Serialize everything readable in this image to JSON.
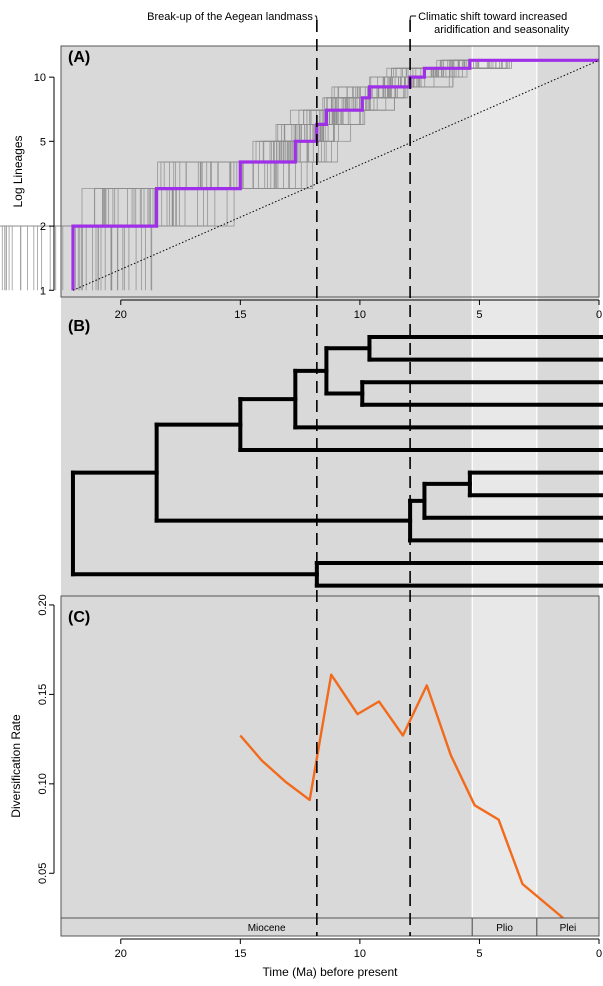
{
  "chart_data": [
    {
      "panel": "(A)",
      "type": "line",
      "ylabel": "Log Lineages",
      "yscale": "log",
      "x_reversed": true,
      "xlim": [
        22.5,
        0
      ],
      "ylim": [
        0.93,
        14
      ],
      "xticks": [
        20,
        15,
        10,
        5,
        0
      ],
      "yticks": [
        1,
        2,
        5,
        10
      ],
      "series": [
        {
          "color": "#a030e8",
          "step": true,
          "points": [
            [
              22.0,
              1
            ],
            [
              22.0,
              2
            ],
            [
              18.5,
              2
            ],
            [
              18.5,
              3
            ],
            [
              15.0,
              3
            ],
            [
              15.0,
              4
            ],
            [
              12.7,
              4
            ],
            [
              12.7,
              5
            ],
            [
              11.8,
              5
            ],
            [
              11.8,
              6
            ],
            [
              11.4,
              6
            ],
            [
              11.4,
              7
            ],
            [
              9.9,
              7
            ],
            [
              9.9,
              8
            ],
            [
              9.6,
              8
            ],
            [
              9.6,
              9
            ],
            [
              7.9,
              9
            ],
            [
              7.9,
              10
            ],
            [
              7.3,
              10
            ],
            [
              7.3,
              11
            ],
            [
              5.4,
              11
            ],
            [
              5.4,
              12
            ],
            [
              0,
              12
            ]
          ]
        },
        {
          "color": "#000000",
          "dotted": true,
          "points": [
            [
              22.0,
              1
            ],
            [
              0,
              12
            ]
          ]
        }
      ],
      "annotations": [
        {
          "x": 11.8,
          "label": "Break-up of the Aegean landmass"
        },
        {
          "x": 7.9,
          "label": "Climatic shift toward increased aridification and seasonality"
        }
      ]
    },
    {
      "panel": "(B)",
      "type": "tree",
      "tips": 12,
      "nodes_ma": [
        22.0,
        18.5,
        15.0,
        12.7,
        11.8,
        11.4,
        9.9,
        9.6,
        7.9,
        7.3,
        5.4
      ]
    },
    {
      "panel": "(C)",
      "type": "line",
      "xlabel": "Time (Ma) before present",
      "ylabel": "Diversification Rate",
      "x_reversed": true,
      "xlim": [
        22.5,
        0
      ],
      "ylim": [
        0.025,
        0.205
      ],
      "xticks": [
        20,
        15,
        10,
        5,
        0
      ],
      "yticks": [
        0.05,
        0.1,
        0.15,
        0.2
      ],
      "series": [
        {
          "color": "#f26a1b",
          "x": [
            15.0,
            14.1,
            13.1,
            12.1,
            11.2,
            10.1,
            9.2,
            8.2,
            7.2,
            6.2,
            5.2,
            4.2,
            3.2,
            1.5
          ],
          "y": [
            0.127,
            0.113,
            0.101,
            0.091,
            0.161,
            0.139,
            0.146,
            0.127,
            0.155,
            0.116,
            0.088,
            0.08,
            0.044,
            0.025
          ]
        }
      ],
      "epochs": [
        {
          "name": "Miocene",
          "from": 23.0,
          "to": 5.3
        },
        {
          "name": "Plio",
          "from": 5.3,
          "to": 2.6
        },
        {
          "name": "Plei",
          "from": 2.6,
          "to": 0
        }
      ]
    }
  ]
}
